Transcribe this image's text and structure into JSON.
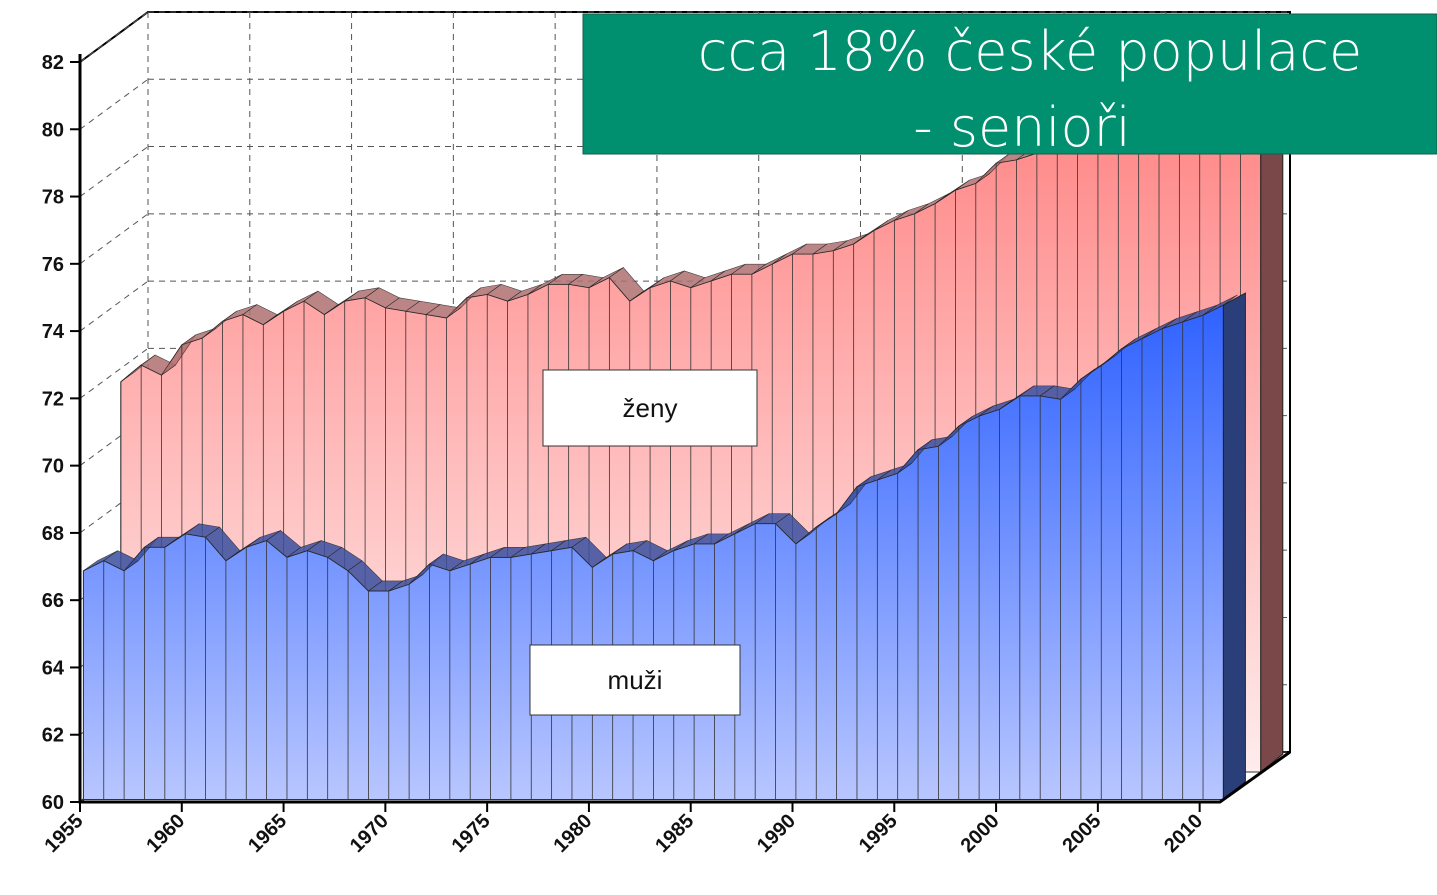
{
  "chart_data": {
    "type": "area3d",
    "banner": [
      "cca 18% české populace",
      "- senioři"
    ],
    "x": [
      1955,
      1956,
      1957,
      1958,
      1959,
      1960,
      1961,
      1962,
      1963,
      1964,
      1965,
      1966,
      1967,
      1968,
      1969,
      1970,
      1971,
      1972,
      1973,
      1974,
      1975,
      1976,
      1977,
      1978,
      1979,
      1980,
      1981,
      1982,
      1983,
      1984,
      1985,
      1986,
      1987,
      1988,
      1989,
      1990,
      1991,
      1992,
      1993,
      1994,
      1995,
      1996,
      1997,
      1998,
      1999,
      2000,
      2001,
      2002,
      2003,
      2004,
      2005,
      2006,
      2007,
      2008,
      2009,
      2010,
      2011
    ],
    "series": [
      {
        "name": "ženy",
        "color": "#ff8585",
        "values": [
          71.6,
          72.1,
          71.8,
          72.7,
          72.9,
          73.4,
          73.6,
          73.3,
          73.7,
          74.0,
          73.6,
          74.0,
          74.1,
          73.8,
          73.7,
          73.6,
          73.5,
          74.1,
          74.2,
          74.0,
          74.2,
          74.5,
          74.5,
          74.4,
          74.7,
          74.0,
          74.4,
          74.6,
          74.4,
          74.6,
          74.8,
          74.8,
          75.1,
          75.4,
          75.4,
          75.5,
          75.7,
          76.1,
          76.4,
          76.6,
          76.9,
          77.3,
          77.5,
          78.1,
          78.2,
          78.4,
          78.5,
          78.7,
          78.6,
          79.0,
          79.1,
          79.9,
          80.2,
          80.5,
          80.5,
          80.9,
          81.1
        ]
      },
      {
        "name": "muži",
        "color": "#3d6bff",
        "values": [
          66.8,
          67.1,
          66.8,
          67.5,
          67.5,
          67.9,
          67.8,
          67.1,
          67.5,
          67.7,
          67.2,
          67.4,
          67.2,
          66.8,
          66.2,
          66.2,
          66.4,
          67.0,
          66.8,
          67.0,
          67.2,
          67.2,
          67.3,
          67.4,
          67.5,
          66.9,
          67.3,
          67.4,
          67.1,
          67.4,
          67.6,
          67.6,
          67.9,
          68.2,
          68.2,
          67.6,
          68.1,
          68.5,
          69.3,
          69.5,
          69.7,
          70.4,
          70.5,
          71.1,
          71.4,
          71.6,
          72.0,
          72.0,
          71.9,
          72.5,
          72.9,
          73.4,
          73.7,
          74.0,
          74.2,
          74.4,
          74.7
        ]
      }
    ],
    "xlim": [
      1955,
      2011
    ],
    "xticks": [
      1955,
      1960,
      1965,
      1970,
      1975,
      1980,
      1985,
      1990,
      1995,
      2000,
      2005,
      2010
    ],
    "ylim": [
      60,
      82
    ],
    "yticks": [
      60,
      62,
      64,
      66,
      68,
      70,
      72,
      74,
      76,
      78,
      80,
      82
    ],
    "grid": true
  }
}
